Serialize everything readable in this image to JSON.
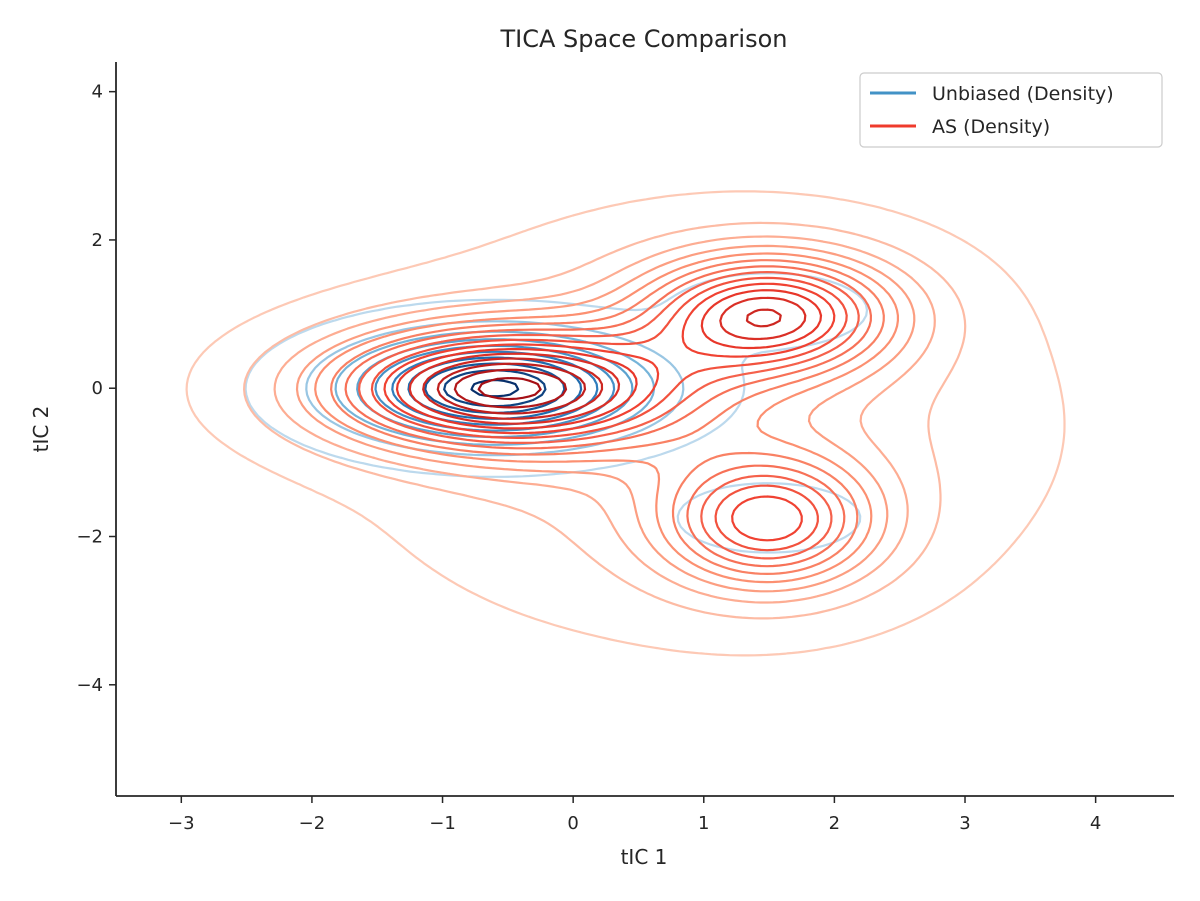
{
  "chart_data": {
    "type": "contour",
    "title": "TICA Space Comparison",
    "xlabel": "tIC 1",
    "ylabel": "tIC 2",
    "xlim": [
      -3.5,
      4.6
    ],
    "ylim": [
      -5.5,
      4.4
    ],
    "xticks": [
      -3,
      -2,
      -1,
      0,
      1,
      2,
      3,
      4
    ],
    "xtick_labels": [
      "−3",
      "−2",
      "−1",
      "0",
      "1",
      "2",
      "3",
      "4"
    ],
    "yticks": [
      -4,
      -2,
      0,
      2,
      4
    ],
    "ytick_labels": [
      "−4",
      "−2",
      "0",
      "2",
      "4"
    ],
    "grid": false,
    "legend": {
      "placement": "top-right"
    },
    "series": [
      {
        "name": "Unbiased (Density)",
        "color": "#4292c6",
        "colormap": "Blues",
        "components": [
          {
            "mean": [
              -0.6,
              0.0
            ],
            "sigma": [
              0.72,
              0.45
            ],
            "weight": 1.0
          },
          {
            "mean": [
              1.5,
              1.05
            ],
            "sigma": [
              0.45,
              0.3
            ],
            "weight": 0.12
          },
          {
            "mean": [
              1.5,
              -1.75
            ],
            "sigma": [
              0.45,
              0.3
            ],
            "weight": 0.1
          }
        ],
        "levels": 10
      },
      {
        "name": "AS (Density)",
        "color": "#ef3b2c",
        "colormap": "Reds",
        "components": [
          {
            "mean": [
              -0.55,
              0.0
            ],
            "sigma": [
              0.9,
              0.55
            ],
            "weight": 1.0
          },
          {
            "mean": [
              1.5,
              1.0
            ],
            "sigma": [
              0.65,
              0.55
            ],
            "weight": 0.75
          },
          {
            "mean": [
              1.5,
              -1.8
            ],
            "sigma": [
              0.55,
              0.6
            ],
            "weight": 0.6
          },
          {
            "mean": [
              1.0,
              -0.5
            ],
            "sigma": [
              1.5,
              1.6
            ],
            "weight": 0.18
          }
        ],
        "levels": 16
      }
    ]
  }
}
